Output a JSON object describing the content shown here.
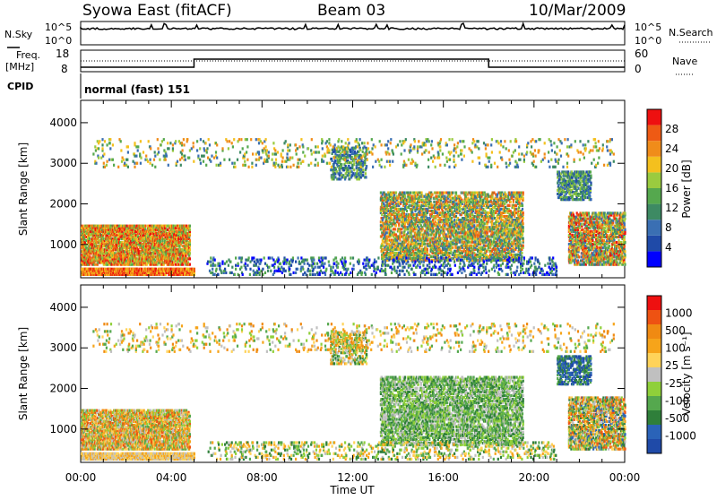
{
  "header": {
    "site": "Syowa East (fitACF)",
    "beam": "Beam 03",
    "date": "10/Mar/2009"
  },
  "status_panels": {
    "nsky_label": "N.Sky",
    "nsky_ticks": [
      "10^5",
      "10^0"
    ],
    "nsearch_label": "N.Search",
    "nsearch_ticks": [
      "10^5",
      "10^0"
    ],
    "freq_label": "Freq.",
    "freq_unit": "[MHz]",
    "freq_ticks": [
      "18",
      "8"
    ],
    "nave_label": "Nave",
    "nave_ticks": [
      "60",
      "0"
    ],
    "cpid_label": "CPID",
    "cpid_value": "normal (fast) 151"
  },
  "colors": {
    "power_scale": [
      "#0000ff",
      "#1f4aa8",
      "#3a6fb3",
      "#3d8a63",
      "#55a84e",
      "#9acb3f",
      "#f4c01e",
      "#f08c1a",
      "#ee5a14",
      "#ee1010"
    ],
    "velocity_scale": [
      "#1f4aa8",
      "#2a63b8",
      "#2f7f3a",
      "#55a84e",
      "#8fd03a",
      "#c0c0c0",
      "#ffd35a",
      "#f6a41a",
      "#f08a12",
      "#ee5212",
      "#ee1010"
    ]
  },
  "chart_data": [
    {
      "type": "heatmap",
      "title": "Power",
      "x": [
        "00:00",
        "04:00",
        "08:00",
        "12:00",
        "16:00",
        "20:00",
        "00:00"
      ],
      "xlim_hours": [
        0,
        24
      ],
      "ylabel": "Slant Range [km]",
      "ylim": [
        180,
        4550
      ],
      "yticks": [
        1000,
        2000,
        3000,
        4000
      ],
      "colorbar_label": "Power [dB]",
      "colorbar_ticks": [
        "4",
        "8",
        "12",
        "16",
        "20",
        "24",
        "28"
      ],
      "colorbar_range": [
        0,
        30
      ]
    },
    {
      "type": "heatmap",
      "title": "Velocity",
      "x": [
        "00:00",
        "04:00",
        "08:00",
        "12:00",
        "16:00",
        "20:00",
        "00:00"
      ],
      "xlim_hours": [
        0,
        24
      ],
      "xlabel": "Time UT",
      "ylabel": "Slant Range [km]",
      "ylim": [
        180,
        4550
      ],
      "yticks": [
        1000,
        2000,
        3000,
        4000
      ],
      "colorbar_label": "Velocity [m s⁻¹]",
      "colorbar_ticks": [
        "1000",
        "500",
        "100",
        "25",
        "-25",
        "-100",
        "-500",
        "-1000"
      ]
    }
  ]
}
